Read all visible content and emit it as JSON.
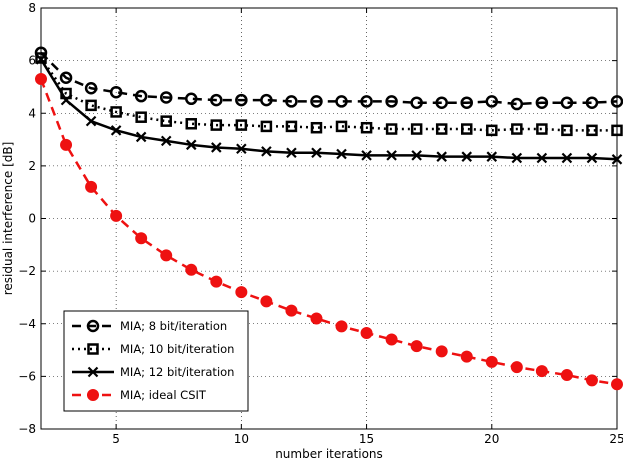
{
  "chart_data": {
    "type": "line",
    "title": "",
    "xlabel": "number iterations",
    "ylabel": "residual interference [dB]",
    "xlim": [
      2,
      25
    ],
    "ylim": [
      -8,
      8
    ],
    "xticks": [
      5,
      10,
      15,
      20,
      25
    ],
    "yticks": [
      -8,
      -6,
      -4,
      -2,
      0,
      2,
      4,
      6,
      8
    ],
    "x_tick_labels": [
      "5",
      "10",
      "15",
      "20",
      "25"
    ],
    "y_tick_labels": [
      "−8",
      "−6",
      "−4",
      "−2",
      "0",
      "2",
      "4",
      "6",
      "8"
    ],
    "grid": true,
    "legend_position": "bottom-left",
    "x": [
      2,
      3,
      4,
      5,
      6,
      7,
      8,
      9,
      10,
      11,
      12,
      13,
      14,
      15,
      16,
      17,
      18,
      19,
      20,
      21,
      22,
      23,
      24,
      25
    ],
    "series": [
      {
        "name": "MIA; 8 bit/iteration",
        "color": "#000000",
        "line_style": "dashed",
        "marker": "circle-open",
        "values": [
          6.3,
          5.35,
          4.95,
          4.8,
          4.65,
          4.6,
          4.55,
          4.5,
          4.5,
          4.5,
          4.45,
          4.45,
          4.45,
          4.45,
          4.45,
          4.4,
          4.4,
          4.4,
          4.45,
          4.35,
          4.4,
          4.4,
          4.4,
          4.45
        ]
      },
      {
        "name": "MIA; 10 bit/iteration",
        "color": "#000000",
        "line_style": "dotted",
        "marker": "square-open",
        "values": [
          6.1,
          4.75,
          4.3,
          4.05,
          3.85,
          3.7,
          3.6,
          3.55,
          3.55,
          3.5,
          3.5,
          3.45,
          3.5,
          3.45,
          3.4,
          3.4,
          3.4,
          3.4,
          3.35,
          3.4,
          3.4,
          3.35,
          3.35,
          3.35
        ]
      },
      {
        "name": "MIA; 12 bit/iteration",
        "color": "#000000",
        "line_style": "solid",
        "marker": "x",
        "values": [
          6.05,
          4.5,
          3.7,
          3.35,
          3.1,
          2.95,
          2.8,
          2.7,
          2.65,
          2.55,
          2.5,
          2.5,
          2.45,
          2.4,
          2.4,
          2.4,
          2.35,
          2.35,
          2.35,
          2.3,
          2.3,
          2.3,
          2.3,
          2.25
        ]
      },
      {
        "name": "MIA; ideal CSIT",
        "color": "#ee1111",
        "line_style": "dashed",
        "marker": "circle-filled",
        "values": [
          5.3,
          2.8,
          1.2,
          0.1,
          -0.75,
          -1.4,
          -1.95,
          -2.4,
          -2.8,
          -3.15,
          -3.5,
          -3.8,
          -4.1,
          -4.35,
          -4.6,
          -4.85,
          -5.05,
          -5.25,
          -5.45,
          -5.65,
          -5.8,
          -5.95,
          -6.15,
          -6.3
        ]
      }
    ]
  }
}
